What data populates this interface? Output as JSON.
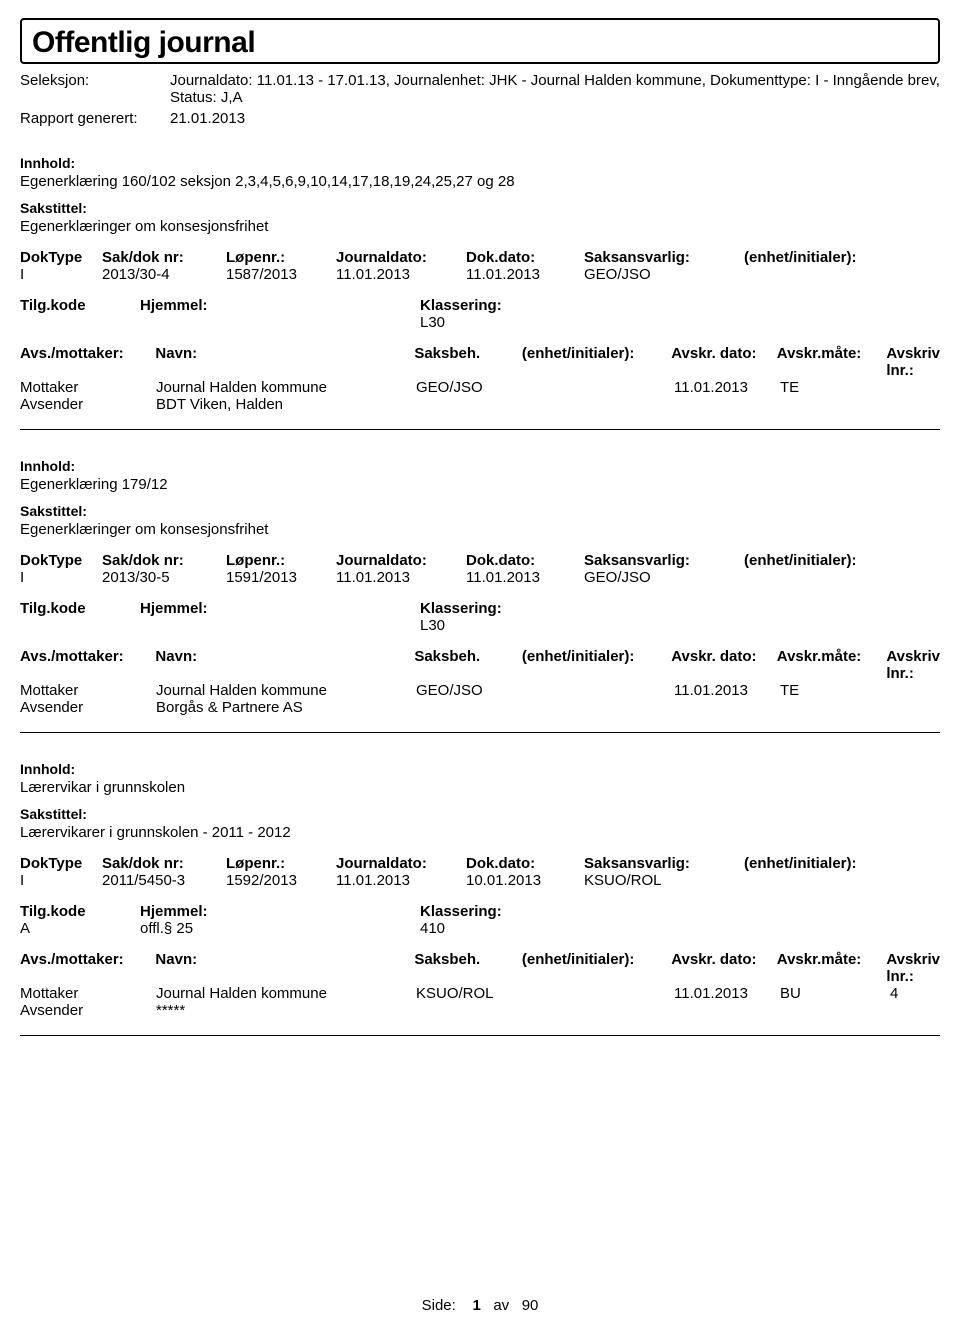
{
  "header": {
    "title": "Offentlig journal",
    "seleksjon_label": "Seleksjon:",
    "seleksjon_value": "Journaldato: 11.01.13 - 17.01.13, Journalenhet: JHK - Journal Halden kommune, Dokumenttype: I - Inngående brev, Status: J,A",
    "rapport_label": "Rapport generert:",
    "rapport_value": "21.01.2013"
  },
  "section_labels": {
    "innhold": "Innhold:",
    "sakstittel": "Sakstittel:",
    "doktype": "DokType",
    "sakdoknr": "Sak/dok nr:",
    "lopenr": "Løpenr.:",
    "journaldato": "Journaldato:",
    "dokdato": "Dok.dato:",
    "saksansvarlig": "Saksansvarlig:",
    "enhet_init": "(enhet/initialer):",
    "tilgkode": "Tilg.kode",
    "hjemmel": "Hjemmel:",
    "klassering": "Klassering:",
    "avs_mottaker": "Avs./mottaker:",
    "navn": "Navn:",
    "saksbeh": "Saksbeh.",
    "avskr_dato": "Avskr. dato:",
    "avskr_mate": "Avskr.måte:",
    "avskriv_lnr": "Avskriv lnr.:",
    "mottaker": "Mottaker",
    "avsender": "Avsender"
  },
  "entries": [
    {
      "innhold": "Egenerklæring 160/102 seksjon 2,3,4,5,6,9,10,14,17,18,19,24,25,27 og 28",
      "sakstittel": "Egenerklæringer om konsesjonsfrihet",
      "doktype": "I",
      "sakdoknr": "2013/30-4",
      "lopenr": "1587/2013",
      "journaldato": "11.01.2013",
      "dokdato": "11.01.2013",
      "saksansvarlig": "GEO/JSO",
      "enhet_init": "",
      "tilgkode": "",
      "hjemmel": "",
      "klassering": "L30",
      "parties": [
        {
          "role": "Mottaker",
          "navn": "Journal Halden kommune",
          "saksbeh": "GEO/JSO",
          "enhet": "",
          "avskr_dato": "11.01.2013",
          "avskr_mate": "TE",
          "avskriv_lnr": ""
        },
        {
          "role": "Avsender",
          "navn": "BDT Viken, Halden",
          "saksbeh": "",
          "enhet": "",
          "avskr_dato": "",
          "avskr_mate": "",
          "avskriv_lnr": ""
        }
      ]
    },
    {
      "innhold": "Egenerklæring 179/12",
      "sakstittel": "Egenerklæringer om konsesjonsfrihet",
      "doktype": "I",
      "sakdoknr": "2013/30-5",
      "lopenr": "1591/2013",
      "journaldato": "11.01.2013",
      "dokdato": "11.01.2013",
      "saksansvarlig": "GEO/JSO",
      "enhet_init": "",
      "tilgkode": "",
      "hjemmel": "",
      "klassering": "L30",
      "parties": [
        {
          "role": "Mottaker",
          "navn": "Journal Halden kommune",
          "saksbeh": "GEO/JSO",
          "enhet": "",
          "avskr_dato": "11.01.2013",
          "avskr_mate": "TE",
          "avskriv_lnr": ""
        },
        {
          "role": "Avsender",
          "navn": "Borgås & Partnere AS",
          "saksbeh": "",
          "enhet": "",
          "avskr_dato": "",
          "avskr_mate": "",
          "avskriv_lnr": ""
        }
      ]
    },
    {
      "innhold": "Lærervikar i grunnskolen",
      "sakstittel": "Lærervikarer i grunnskolen - 2011 - 2012",
      "doktype": "I",
      "sakdoknr": "2011/5450-3",
      "lopenr": "1592/2013",
      "journaldato": "11.01.2013",
      "dokdato": "10.01.2013",
      "saksansvarlig": "KSUO/ROL",
      "enhet_init": "",
      "tilgkode": "A",
      "hjemmel": "offl.§ 25",
      "klassering": "410",
      "parties": [
        {
          "role": "Mottaker",
          "navn": "Journal Halden kommune",
          "saksbeh": "KSUO/ROL",
          "enhet": "",
          "avskr_dato": "11.01.2013",
          "avskr_mate": "BU",
          "avskriv_lnr": "4"
        },
        {
          "role": "Avsender",
          "navn": "*****",
          "saksbeh": "",
          "enhet": "",
          "avskr_dato": "",
          "avskr_mate": "",
          "avskriv_lnr": ""
        }
      ]
    }
  ],
  "footer": {
    "side_label": "Side:",
    "page_num": "1",
    "av": "av",
    "total": "90"
  }
}
